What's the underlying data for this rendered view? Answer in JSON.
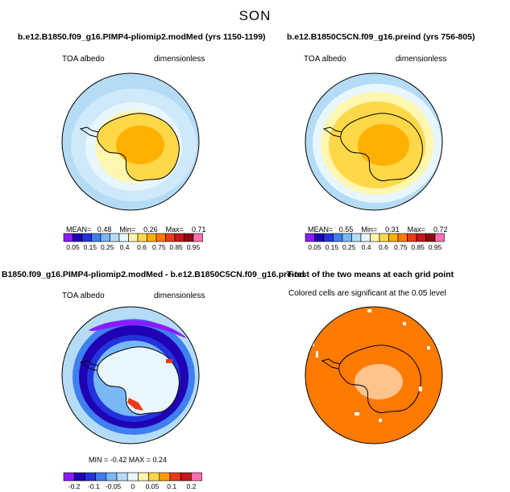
{
  "figure": {
    "season": "SON"
  },
  "panels": [
    {
      "title": "b.e12.B1850.f09_g16.PIMP4-pliomip2.modMed (yrs 1150-1199)",
      "variable": "TOA albedo",
      "units": "dimensionless",
      "stats": {
        "mean_label": "MEAN=",
        "mean": "0.48",
        "min_label": "Min=",
        "min": "0.26",
        "max_label": "Max=",
        "max": "0.71"
      }
    },
    {
      "title": "b.e12.B1850C5CN.f09_g16.preind (yrs 756-805)",
      "variable": "TOA albedo",
      "units": "dimensionless",
      "stats": {
        "mean_label": "MEAN=",
        "mean": "0.55",
        "min_label": "Min=",
        "min": "0.31",
        "max_label": "Max=",
        "max": "0.72"
      }
    },
    {
      "title": "B1850.f09_g16.PIMP4-pliomip2.modMed - b.e12.B1850C5CN.f09_g16.preind",
      "variable": "TOA albedo",
      "units": "dimensionless",
      "stats": {
        "text": "MIN =  -0.42  MAX =    0.24"
      }
    },
    {
      "title": "T-test of the two means at each grid point",
      "note": "Colored cells are significant at the 0.05 level"
    }
  ],
  "colorbars": {
    "absolute": {
      "colors": [
        "#8c1aff",
        "#1f00b3",
        "#2233dd",
        "#3f7ff0",
        "#78b8f5",
        "#b4dcf7",
        "#e8f6fd",
        "#fff6b0",
        "#ffd84a",
        "#ffb000",
        "#ff7a00",
        "#ee3a1a",
        "#c8141a",
        "#8c0a14",
        "#ff6eb4"
      ],
      "labels": [
        "0.05",
        "0.15",
        "0.25",
        "0.4",
        "0.6",
        "0.75",
        "0.85",
        "0.95"
      ]
    },
    "difference": {
      "colors": [
        "#8c1aff",
        "#1f00b3",
        "#2233dd",
        "#3f7ff0",
        "#78b8f5",
        "#b4dcf7",
        "#e8f6fd",
        "#fff6b0",
        "#ffd84a",
        "#ff9a00",
        "#ee3a1a",
        "#c8141a",
        "#ff6eb4"
      ],
      "labels": [
        "-0.2",
        "-0.1",
        "-0.05",
        "0",
        "0.05",
        "0.1",
        "0.2"
      ]
    }
  },
  "chart_data": [
    {
      "type": "map",
      "projection": "south polar stereographic",
      "title": "b.e12.B1850.f09_g16.PIMP4-pliomip2.modMed (yrs 1150-1199)",
      "field": "TOA albedo",
      "units": "dimensionless",
      "mean": 0.48,
      "min": 0.26,
      "max": 0.71,
      "contour_levels": [
        0.05,
        0.1,
        0.15,
        0.2,
        0.25,
        0.3,
        0.4,
        0.5,
        0.6,
        0.7,
        0.75,
        0.8,
        0.85,
        0.9,
        0.95
      ]
    },
    {
      "type": "map",
      "projection": "south polar stereographic",
      "title": "b.e12.B1850C5CN.f09_g16.preind (yrs 756-805)",
      "field": "TOA albedo",
      "units": "dimensionless",
      "mean": 0.55,
      "min": 0.31,
      "max": 0.72,
      "contour_levels": [
        0.05,
        0.1,
        0.15,
        0.2,
        0.25,
        0.3,
        0.4,
        0.5,
        0.6,
        0.7,
        0.75,
        0.8,
        0.85,
        0.9,
        0.95
      ]
    },
    {
      "type": "map",
      "projection": "south polar stereographic",
      "title": "B1850.f09_g16.PIMP4-pliomip2.modMed - b.e12.B1850C5CN.f09_g16.preind",
      "field": "TOA albedo difference",
      "units": "dimensionless",
      "min": -0.42,
      "max": 0.24,
      "contour_levels": [
        -0.2,
        -0.15,
        -0.1,
        -0.07,
        -0.05,
        -0.02,
        0,
        0.02,
        0.05,
        0.07,
        0.1,
        0.15,
        0.2
      ]
    },
    {
      "type": "map",
      "projection": "south polar stereographic",
      "title": "T-test of the two means at each grid point",
      "significance_level": 0.05
    }
  ]
}
